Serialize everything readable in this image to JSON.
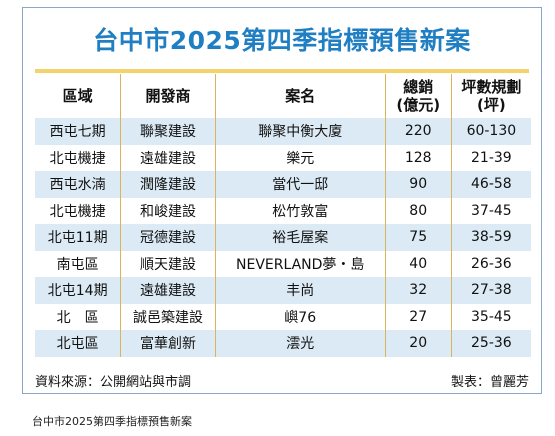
{
  "title": "台中市2025第四季指標預售新案",
  "headers": {
    "district": "區域",
    "developer": "開發商",
    "project": "案名",
    "sales_line1": "總銷",
    "sales_line2": "(億元)",
    "size_line1": "坪數規劃",
    "size_line2": "(坪)"
  },
  "rows": [
    {
      "district": "西屯七期",
      "developer": "聯聚建設",
      "project": "聯聚中衡大廈",
      "sales": "220",
      "size": "60-130"
    },
    {
      "district": "北屯機捷",
      "developer": "遠雄建設",
      "project": "樂元",
      "sales": "128",
      "size": "21-39"
    },
    {
      "district": "西屯水湳",
      "developer": "潤隆建設",
      "project": "當代一邸",
      "sales": "90",
      "size": "46-58"
    },
    {
      "district": "北屯機捷",
      "developer": "和峻建設",
      "project": "松竹敦富",
      "sales": "80",
      "size": "37-45"
    },
    {
      "district": "北屯11期",
      "developer": "冠德建設",
      "project": "裕毛屋案",
      "sales": "75",
      "size": "38-59"
    },
    {
      "district": "南屯區",
      "developer": "順天建設",
      "project": "NEVERLAND夢・島",
      "sales": "40",
      "size": "26-36"
    },
    {
      "district": "北屯14期",
      "developer": "遠雄建設",
      "project": "丰尚",
      "sales": "32",
      "size": "27-38"
    },
    {
      "district": "北　區",
      "developer": "誠邑築建設",
      "project": "嶼76",
      "sales": "27",
      "size": "35-45"
    },
    {
      "district": "北屯區",
      "developer": "富華創新",
      "project": "澐光",
      "sales": "20",
      "size": "25-36"
    }
  ],
  "source": "資料來源：公開網站與市調",
  "credit": "製表：曾麗芳",
  "caption": "台中市2025第四季指標預售新案",
  "colors": {
    "title": "#1f7fc2",
    "rule": "#f2d46a",
    "stripe": "#dbeaf4",
    "divider": "#d8b45a"
  }
}
